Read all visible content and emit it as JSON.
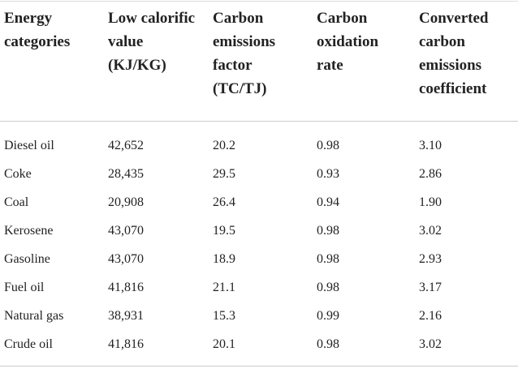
{
  "table": {
    "headers": [
      "Energy categories",
      "Low calorific value (KJ/KG)",
      "Carbon emissions factor (TC/TJ)",
      "Carbon oxidation rate",
      "Converted carbon emissions coefficient"
    ],
    "rows": [
      [
        "Diesel oil",
        "42,652",
        "20.2",
        "0.98",
        "3.10"
      ],
      [
        "Coke",
        "28,435",
        "29.5",
        "0.93",
        "2.86"
      ],
      [
        "Coal",
        "20,908",
        "26.4",
        "0.94",
        "1.90"
      ],
      [
        "Kerosene",
        "43,070",
        "19.5",
        "0.98",
        "3.02"
      ],
      [
        "Gasoline",
        "43,070",
        "18.9",
        "0.98",
        "2.93"
      ],
      [
        "Fuel oil",
        "41,816",
        "21.1",
        "0.98",
        "3.17"
      ],
      [
        "Natural gas",
        "38,931",
        "15.3",
        "0.99",
        "2.16"
      ],
      [
        "Crude oil",
        "41,816",
        "20.1",
        "0.98",
        "3.02"
      ]
    ]
  }
}
